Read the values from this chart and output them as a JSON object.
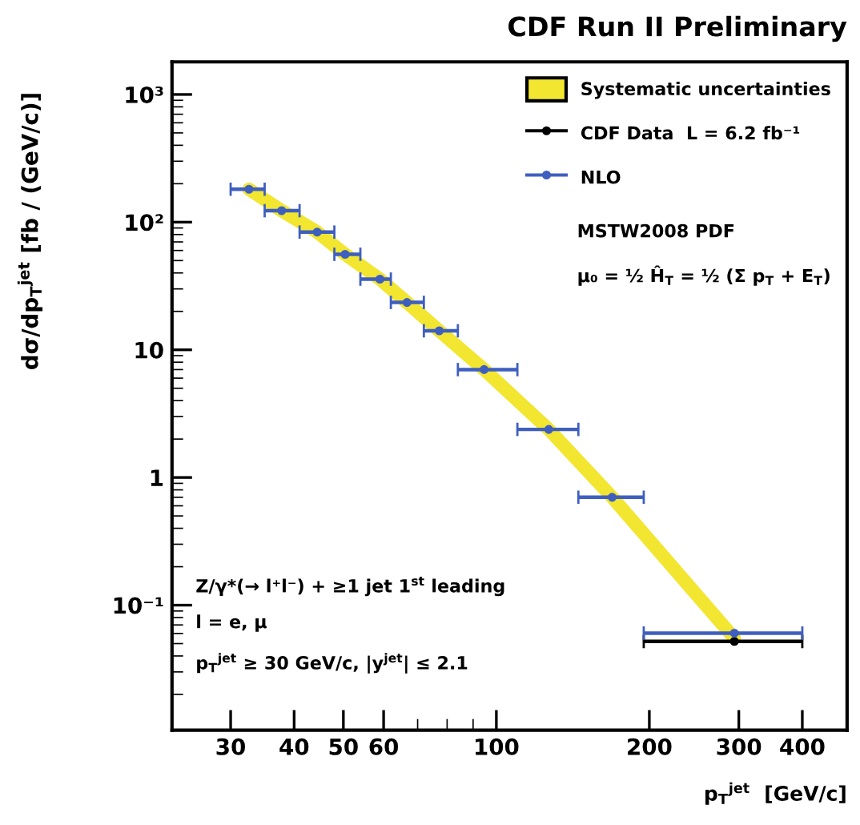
{
  "chart_data": {
    "type": "scatter",
    "title": "CDF Run II Preliminary",
    "xlabel": "p$_{T}$$^{jet}$  [GeV/c]",
    "ylabel": "dσ/dp$_{T}$$^{jet}$ [fb / (GeV/c)]",
    "log": "xy",
    "x": [
      32.6,
      37.8,
      44.4,
      50.4,
      59,
      66.7,
      77.2,
      94.6,
      126.8,
      169,
      294
    ],
    "xlim": [
      23,
      490
    ],
    "ylim": [
      0.0105,
      1800
    ],
    "xticks": [
      30,
      40,
      50,
      60,
      100,
      200,
      300,
      400
    ],
    "yticks": [
      {
        "value": 1000,
        "label": "10³"
      },
      {
        "value": 100,
        "label": "10²"
      },
      10,
      1,
      {
        "value": 0.1,
        "label": "10⁻¹"
      }
    ],
    "series": [
      {
        "name": "Systematic uncertainties",
        "type": "line",
        "marker": "none",
        "color": "#f2e630",
        "values": [
          181,
          123,
          83.6,
          56,
          35.8,
          23.5,
          14.1,
          7.0,
          2.38,
          0.7,
          0.055
        ]
      },
      {
        "name": "CDF Data  L = 6.2 fb⁻¹",
        "marker": "circle",
        "color": "#000000",
        "values": [
          null,
          null,
          null,
          null,
          null,
          null,
          null,
          null,
          null,
          null,
          0.052
        ],
        "xerrors": [
          null,
          null,
          null,
          null,
          null,
          null,
          null,
          null,
          null,
          null,
          [
            195,
            400
          ]
        ]
      },
      {
        "name": "NLO",
        "marker": "circle",
        "color": "#3f5fbf",
        "values": [
          181,
          123,
          83.6,
          56,
          35.8,
          23.5,
          14.1,
          7.0,
          2.38,
          0.7,
          0.0604
        ],
        "xerrors": [
          [
            30,
            35
          ],
          [
            35,
            41
          ],
          [
            41,
            48
          ],
          [
            48,
            54
          ],
          [
            54,
            62
          ],
          [
            62,
            72
          ],
          [
            72,
            84
          ],
          [
            84,
            110
          ],
          [
            110,
            145
          ],
          [
            145,
            195
          ],
          [
            195,
            400
          ]
        ]
      }
    ],
    "legend": "top right",
    "annotations": [
      "MSTW2008 PDF",
      "μ₀ = ½ Ĥ$_{T}$ = ½ (Σ p$_{T}$ + E$_{T}$)",
      "Z/γ*(→ l⁺l⁻) + ≥1 jet 1$^{st}$ leading",
      "l = e, μ",
      "p$_{T}$$^{jet}$ ≥ 30 GeV/c, |y$^{jet}$| ≤ 2.1"
    ]
  }
}
